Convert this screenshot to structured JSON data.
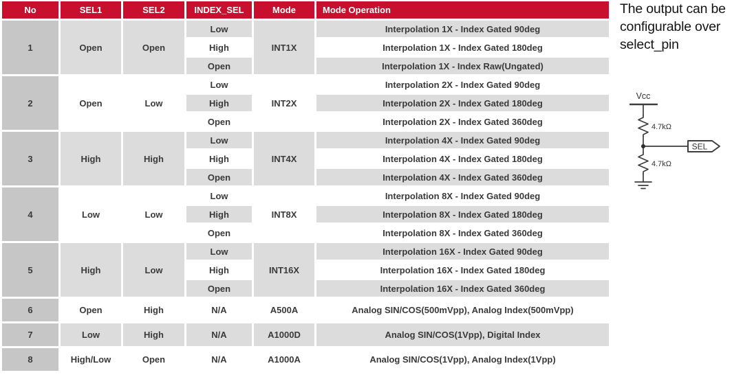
{
  "table": {
    "headers": [
      "No",
      "SEL1",
      "SEL2",
      "INDEX_SEL",
      "Mode",
      "Mode Operation"
    ],
    "groups": [
      {
        "no": "1",
        "sel1": "Open",
        "sel2": "Open",
        "mode": "INT1X",
        "rows": [
          {
            "index_sel": "Low",
            "operation": "Interpolation 1X - Index Gated 90deg"
          },
          {
            "index_sel": "High",
            "operation": "Interpolation 1X - Index Gated 180deg"
          },
          {
            "index_sel": "Open",
            "operation": "Interpolation 1X - Index Raw(Ungated)"
          }
        ]
      },
      {
        "no": "2",
        "sel1": "Open",
        "sel2": "Low",
        "mode": "INT2X",
        "rows": [
          {
            "index_sel": "Low",
            "operation": "Interpolation 2X - Index Gated 90deg"
          },
          {
            "index_sel": "High",
            "operation": "Interpolation 2X - Index Gated 180deg"
          },
          {
            "index_sel": "Open",
            "operation": "Interpolation 2X - Index Gated 360deg"
          }
        ]
      },
      {
        "no": "3",
        "sel1": "High",
        "sel2": "High",
        "mode": "INT4X",
        "rows": [
          {
            "index_sel": "Low",
            "operation": "Interpolation 4X - Index Gated 90deg"
          },
          {
            "index_sel": "High",
            "operation": "Interpolation 4X - Index Gated 180deg"
          },
          {
            "index_sel": "Open",
            "operation": "Interpolation 4X - Index Gated 360deg"
          }
        ]
      },
      {
        "no": "4",
        "sel1": "Low",
        "sel2": "Low",
        "mode": "INT8X",
        "rows": [
          {
            "index_sel": "Low",
            "operation": "Interpolation 8X - Index Gated 90deg"
          },
          {
            "index_sel": "High",
            "operation": "Interpolation 8X - Index Gated 180deg"
          },
          {
            "index_sel": "Open",
            "operation": "Interpolation 8X - Index Gated 360deg"
          }
        ]
      },
      {
        "no": "5",
        "sel1": "High",
        "sel2": "Low",
        "mode": "INT16X",
        "rows": [
          {
            "index_sel": "Low",
            "operation": "Interpolation 16X - Index Gated 90deg"
          },
          {
            "index_sel": "High",
            "operation": "Interpolation 16X - Index Gated 180deg"
          },
          {
            "index_sel": "Open",
            "operation": "Interpolation 16X - Index Gated 360deg"
          }
        ]
      }
    ],
    "single_rows": [
      {
        "no": "6",
        "sel1": "Open",
        "sel2": "High",
        "index_sel": "N/A",
        "mode": "A500A",
        "operation": "Analog SIN/COS(500mVpp), Analog Index(500mVpp)"
      },
      {
        "no": "7",
        "sel1": "Low",
        "sel2": "High",
        "index_sel": "N/A",
        "mode": "A1000D",
        "operation": "Analog SIN/COS(1Vpp), Digital Index"
      },
      {
        "no": "8",
        "sel1": "High/Low",
        "sel2": "Open",
        "index_sel": "N/A",
        "mode": "A1000A",
        "operation": "Analog SIN/COS(1Vpp), Analog Index(1Vpp)"
      }
    ]
  },
  "side_note": {
    "text": "The output can be configurable over select_pin"
  },
  "circuit": {
    "vcc_label": "Vcc",
    "r1_label": "4.7kΩ",
    "r2_label": "4.7kΩ",
    "pin_label": "SEL"
  },
  "colors": {
    "header_bg": "#c8102e",
    "header_text": "#ffffff",
    "no_column_bg": "#c6c6c6",
    "stripe_gray": "#dcdcdc",
    "stripe_white": "#ffffff",
    "body_text": "#3a3a3a"
  }
}
